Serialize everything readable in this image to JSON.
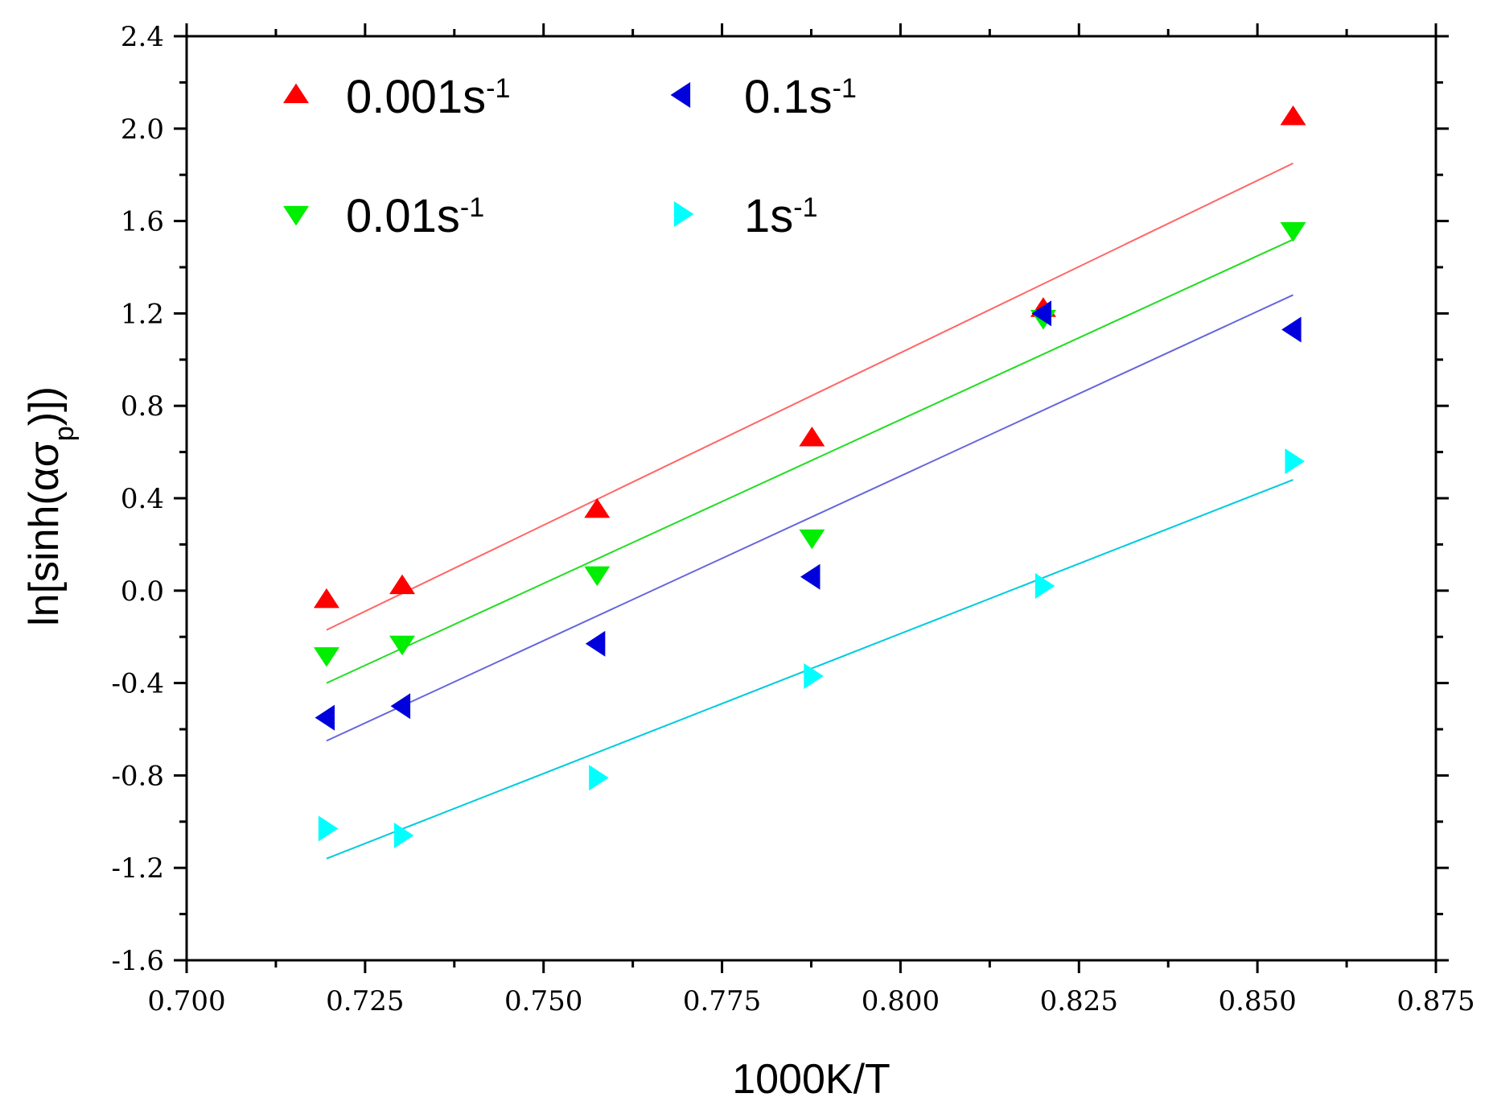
{
  "chart_data": {
    "type": "scatter",
    "title": "",
    "xlabel": "1000K/T",
    "ylabel": "ln[sinh(ασp)])",
    "ylabel_parts": {
      "main": "ln[sinh(ασ",
      "sub": "p",
      "tail": ")])"
    },
    "xlim": [
      0.7,
      0.875
    ],
    "ylim": [
      -1.6,
      2.4
    ],
    "xticks": [
      "0.700",
      "0.725",
      "0.750",
      "0.775",
      "0.800",
      "0.825",
      "0.850",
      "0.875"
    ],
    "yticks": [
      "-1.6",
      "-1.2",
      "-0.8",
      "-0.4",
      "0.0",
      "0.4",
      "0.8",
      "1.2",
      "1.6",
      "2.0",
      "2.4"
    ],
    "legend_position": "top-left",
    "series": [
      {
        "name": "0.001s-1",
        "label_base": "0.001s",
        "label_sup": "-1",
        "marker": "triangle-up",
        "color": "#ff0000",
        "fit_color": "#ff6666",
        "x": [
          0.7196,
          0.7302,
          0.7575,
          0.7876,
          0.82,
          0.855
        ],
        "y": [
          -0.04,
          0.02,
          0.35,
          0.66,
          1.22,
          2.05
        ],
        "fit": {
          "x": [
            0.7196,
            0.855
          ],
          "y": [
            -0.17,
            1.85
          ]
        }
      },
      {
        "name": "0.01s-1",
        "label_base": "0.01s",
        "label_sup": "-1",
        "marker": "triangle-down",
        "color": "#00ee00",
        "fit_color": "#22dd22",
        "x": [
          0.7196,
          0.7302,
          0.7575,
          0.7876,
          0.82,
          0.855
        ],
        "y": [
          -0.28,
          -0.23,
          0.07,
          0.23,
          1.18,
          1.56
        ],
        "fit": {
          "x": [
            0.7196,
            0.855
          ],
          "y": [
            -0.4,
            1.52
          ]
        }
      },
      {
        "name": "0.1s-1",
        "label_base": "0.1s",
        "label_sup": "-1",
        "marker": "triangle-left",
        "color": "#0000dd",
        "fit_color": "#6666dd",
        "x": [
          0.7196,
          0.7302,
          0.7575,
          0.7876,
          0.82,
          0.855
        ],
        "y": [
          -0.55,
          -0.5,
          -0.23,
          0.06,
          1.2,
          1.13
        ],
        "fit": {
          "x": [
            0.7196,
            0.855
          ],
          "y": [
            -0.65,
            1.28
          ]
        }
      },
      {
        "name": "1s-1",
        "label_base": "1s",
        "label_sup": "-1",
        "marker": "triangle-right",
        "color": "#00ffff",
        "fit_color": "#00ccdd",
        "x": [
          0.7196,
          0.7302,
          0.7575,
          0.7876,
          0.82,
          0.855
        ],
        "y": [
          -1.03,
          -1.06,
          -0.81,
          -0.37,
          0.02,
          0.56
        ],
        "fit": {
          "x": [
            0.7196,
            0.855
          ],
          "y": [
            -1.16,
            0.48
          ]
        }
      }
    ]
  }
}
